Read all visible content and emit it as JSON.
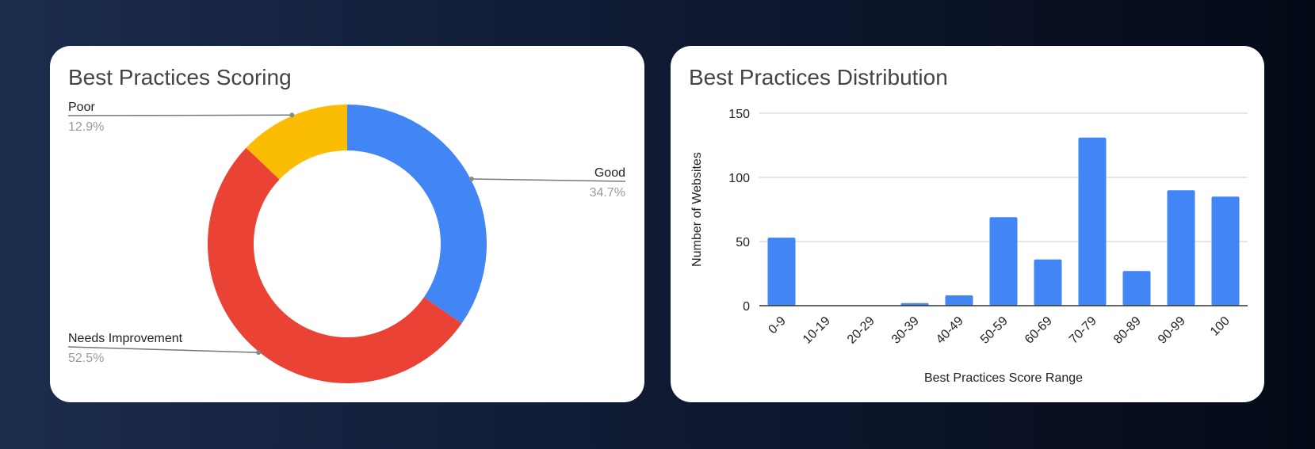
{
  "chart_data": [
    {
      "type": "pie",
      "donut": true,
      "title": "Best Practices Scoring",
      "slices": [
        {
          "label": "Good",
          "value": 34.7,
          "display": "34.7%",
          "color": "#4285f4"
        },
        {
          "label": "Needs Improvement",
          "value": 52.5,
          "display": "52.5%",
          "color": "#ea4335"
        },
        {
          "label": "Poor",
          "value": 12.9,
          "display": "12.9%",
          "color": "#fbbc04"
        }
      ]
    },
    {
      "type": "bar",
      "title": "Best Practices Distribution",
      "categories": [
        "0-9",
        "10-19",
        "20-29",
        "30-39",
        "40-49",
        "50-59",
        "60-69",
        "70-79",
        "80-89",
        "90-99",
        "100"
      ],
      "values": [
        53,
        0,
        0,
        2,
        8,
        69,
        36,
        131,
        27,
        90,
        85
      ],
      "xlabel": "Best Practices Score Range",
      "ylabel": "Number of Websites",
      "ylim": [
        0,
        150
      ],
      "yticks": [
        "0",
        "50",
        "100",
        "150"
      ],
      "grid": true,
      "color": "#4285f4"
    }
  ]
}
